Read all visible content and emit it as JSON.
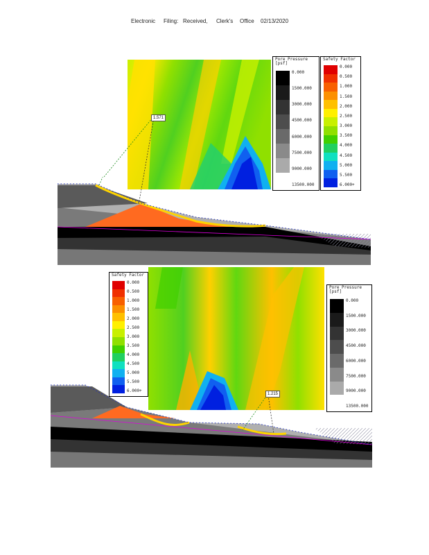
{
  "header": {
    "electronic": "Electronic",
    "filing": "Filing:",
    "received": "Received,",
    "clerks": "Clerk's",
    "office": "Office",
    "date": "02/13/2020"
  },
  "top_figure": {
    "safety_factor_callout": "1.571",
    "pore_pressure_legend": {
      "title_line1": "Pore Pressure",
      "title_line2": "[psf]",
      "labels": [
        "0.000",
        "1500.000",
        "3000.000",
        "4500.000",
        "6000.000",
        "7500.000",
        "9000.000",
        "13500.000"
      ]
    },
    "safety_factor_legend": {
      "title": "Safety Factor",
      "labels": [
        "0.000",
        "0.500",
        "1.000",
        "1.500",
        "2.000",
        "2.500",
        "3.000",
        "3.500",
        "4.000",
        "4.500",
        "5.000",
        "5.500",
        "6.000+"
      ]
    }
  },
  "bottom_figure": {
    "safety_factor_callout": "1.215",
    "safety_factor_legend": {
      "title": "Safety Factor",
      "labels": [
        "0.000",
        "0.500",
        "1.000",
        "1.500",
        "2.000",
        "2.500",
        "3.000",
        "3.500",
        "4.000",
        "4.500",
        "5.000",
        "5.500",
        "6.000+"
      ]
    },
    "pore_pressure_legend": {
      "title_line1": "Pore Pressure",
      "title_line2": "[psf]",
      "labels": [
        "0.000",
        "1500.000",
        "3000.000",
        "4500.000",
        "6000.000",
        "7500.000",
        "9000.000",
        "13500.000"
      ]
    }
  },
  "colors": {
    "sf_scale": [
      "#e00000",
      "#f03000",
      "#f86000",
      "#fc9000",
      "#ffc000",
      "#fff000",
      "#c8f000",
      "#90e000",
      "#40d000",
      "#20d060",
      "#10e0c0",
      "#10b0f0",
      "#1060f0",
      "#0020e0"
    ],
    "pp_scale": [
      "#000000",
      "#1a1a1a",
      "#333333",
      "#4d4d4d",
      "#6a6a6a",
      "#8a8a8a",
      "#aaaaaa",
      "#ffffff"
    ]
  }
}
